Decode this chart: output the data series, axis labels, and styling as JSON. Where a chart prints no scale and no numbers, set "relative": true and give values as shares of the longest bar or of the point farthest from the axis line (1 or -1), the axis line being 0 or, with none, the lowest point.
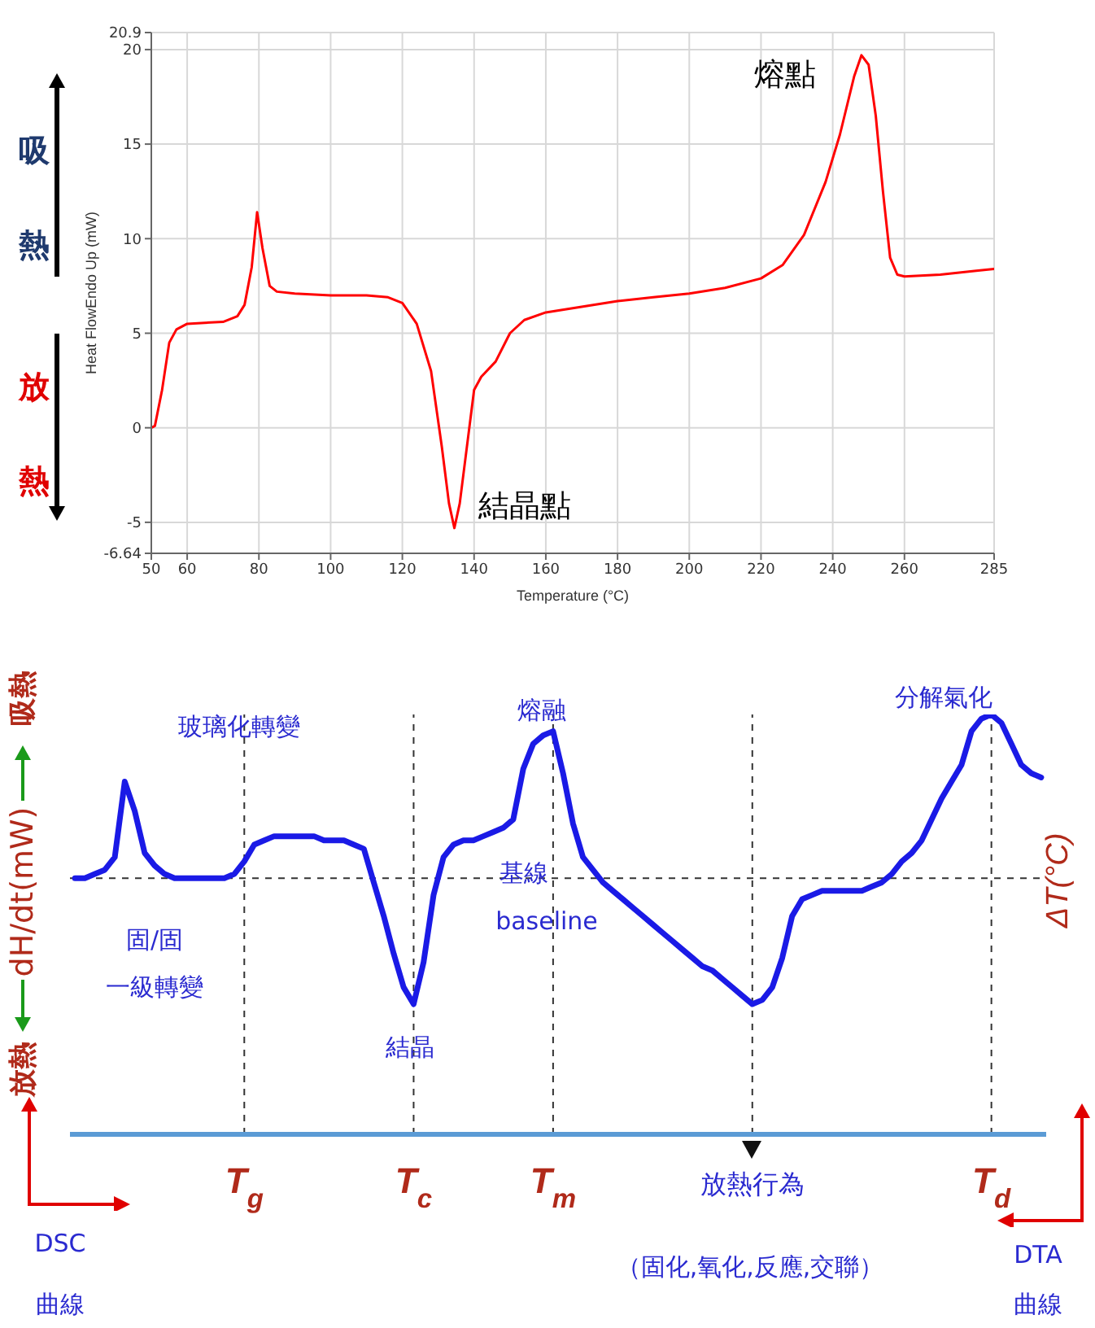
{
  "chart_data": [
    {
      "type": "line",
      "xlabel": "Temperature (°C)",
      "ylabel": "Heat FlowEndo Up (mW)",
      "x": [
        50,
        51,
        53,
        55,
        57,
        60,
        70,
        74,
        76,
        78,
        79.5,
        81,
        83,
        85,
        90,
        100,
        110,
        116,
        120,
        124,
        128,
        131,
        133,
        134.5,
        136,
        138,
        140,
        142,
        146,
        150,
        154,
        160,
        170,
        180,
        190,
        200,
        210,
        220,
        226,
        232,
        238,
        242,
        246,
        248,
        250,
        252,
        254,
        256,
        258,
        260,
        270,
        280,
        285
      ],
      "series": [
        {
          "color": "#ff0000",
          "values": [
            0,
            0.1,
            2,
            4.5,
            5.2,
            5.5,
            5.6,
            5.9,
            6.5,
            8.5,
            11.4,
            9.5,
            7.5,
            7.2,
            7.1,
            7.0,
            7.0,
            6.9,
            6.6,
            5.5,
            3,
            -1,
            -4,
            -5.3,
            -4,
            -1,
            2,
            2.7,
            3.5,
            5.0,
            5.7,
            6.1,
            6.4,
            6.7,
            6.9,
            7.1,
            7.4,
            7.9,
            8.6,
            10.2,
            13,
            15.5,
            18.6,
            19.7,
            19.2,
            16.5,
            12.5,
            9,
            8.1,
            8.0,
            8.1,
            8.3,
            8.4
          ]
        }
      ],
      "xlim": [
        50,
        285
      ],
      "xticks": [
        50,
        60,
        80,
        100,
        120,
        140,
        160,
        180,
        200,
        220,
        240,
        260,
        285
      ],
      "ylim": [
        -6.64,
        20.9
      ],
      "yticks": [
        -6.64,
        -5,
        0,
        5,
        10,
        15,
        20,
        20.9
      ],
      "grid": true,
      "marker": "none",
      "annotations": [
        {
          "text": "熔點",
          "x": 248,
          "y": 19.7
        },
        {
          "text": "結晶點",
          "x": 134.5,
          "y": -5.3
        },
        "吸熱",
        "放熱"
      ]
    },
    {
      "type": "line",
      "relative": true,
      "ylabel": "dH/dt(mW)",
      "y2label": "ΔT(°C)",
      "marker": "none",
      "categories": [
        null,
        null,
        null,
        null,
        null,
        null,
        null,
        null,
        null,
        null,
        null,
        null,
        null,
        null,
        null,
        null,
        null,
        "T$_{g}$",
        null,
        null,
        null,
        null,
        null,
        null,
        null,
        null,
        null,
        null,
        null,
        null,
        null,
        null,
        null,
        null,
        "T$_{c}$",
        null,
        null,
        null,
        null,
        null,
        null,
        null,
        null,
        null,
        null,
        null,
        null,
        null,
        "T$_{m}$",
        null,
        null,
        null,
        null,
        null,
        null,
        null,
        null,
        null,
        null,
        null,
        null,
        null,
        null,
        null,
        null,
        null,
        null,
        null,
        "放熱行為",
        null,
        null,
        null,
        null,
        null,
        null,
        null,
        null,
        null,
        null,
        null,
        null,
        null,
        null,
        null,
        null,
        null,
        null,
        null,
        null,
        null,
        null,
        null,
        "T$_{d}$",
        null,
        null,
        null,
        null,
        null
      ],
      "series": [
        {
          "color": "#1a1ae6",
          "values": [
            0.61,
            0.61,
            0.62,
            0.63,
            0.66,
            0.84,
            0.77,
            0.67,
            0.64,
            0.62,
            0.61,
            0.61,
            0.61,
            0.61,
            0.61,
            0.61,
            0.62,
            0.65,
            0.69,
            0.7,
            0.71,
            0.71,
            0.71,
            0.71,
            0.71,
            0.7,
            0.7,
            0.7,
            0.69,
            0.68,
            0.6,
            0.52,
            0.43,
            0.35,
            0.31,
            0.41,
            0.57,
            0.66,
            0.69,
            0.7,
            0.7,
            0.71,
            0.72,
            0.73,
            0.75,
            0.87,
            0.93,
            0.95,
            0.96,
            0.86,
            0.74,
            0.66,
            0.63,
            0.6,
            0.58,
            0.56,
            0.54,
            0.52,
            0.5,
            0.48,
            0.46,
            0.44,
            0.42,
            0.4,
            0.39,
            0.37,
            0.35,
            0.33,
            0.31,
            0.32,
            0.35,
            0.42,
            0.52,
            0.56,
            0.57,
            0.58,
            0.58,
            0.58,
            0.58,
            0.58,
            0.59,
            0.6,
            0.62,
            0.65,
            0.67,
            0.7,
            0.75,
            0.8,
            0.84,
            0.88,
            0.96,
            0.99,
            1.0,
            0.98,
            0.93,
            0.88,
            0.86,
            0.85
          ]
        }
      ],
      "ref_lines": [
        {
          "axis": "y",
          "value": 0.61,
          "line_style": "dashed"
        },
        {
          "axis": "x",
          "value": "T$_{g}$",
          "line_style": "dashed"
        },
        {
          "axis": "x",
          "value": "T$_{c}$",
          "line_style": "dashed"
        },
        {
          "axis": "x",
          "value": "T$_{m}$",
          "line_style": "dashed"
        },
        {
          "axis": "x",
          "value": "放熱行為",
          "line_style": "dashed"
        },
        {
          "axis": "x",
          "value": "T$_{d}$",
          "line_style": "dashed"
        }
      ],
      "annotations": [
        "玻璃化轉變",
        "熔融",
        "分解氣化",
        "固/固",
        "一級轉變",
        "結晶",
        "基線",
        "baseline",
        "（固化,氧化,反應,交聯）",
        "DSC",
        "曲線",
        "DTA",
        "曲線",
        "吸熱",
        "放熱"
      ]
    }
  ]
}
